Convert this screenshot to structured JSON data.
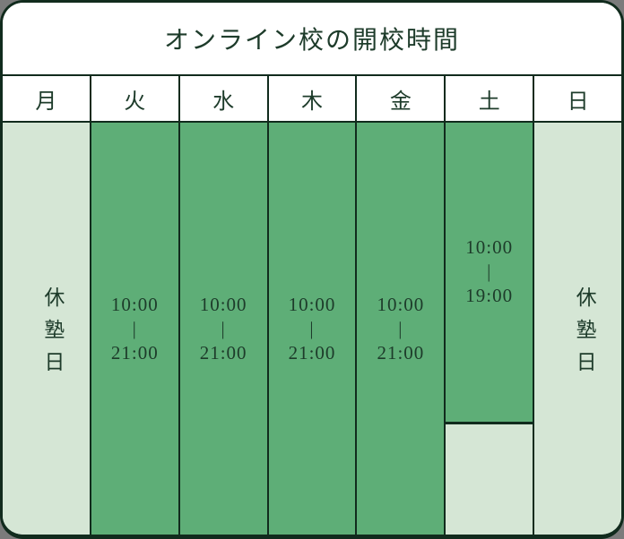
{
  "chart_data": {
    "type": "table",
    "title": "オンライン校の開校時間",
    "categories": [
      "月",
      "火",
      "水",
      "木",
      "金",
      "土",
      "日"
    ],
    "values": [
      "休塾日",
      "10:00–21:00",
      "10:00–21:00",
      "10:00–21:00",
      "10:00–21:00",
      "10:00–19:00",
      "休塾日"
    ],
    "legend_position": "none",
    "grid": true
  },
  "closed_label": "休塾日",
  "time_separator": "|",
  "days": [
    {
      "label": "月",
      "status": "closed"
    },
    {
      "label": "火",
      "status": "open",
      "start": "10:00",
      "end": "21:00"
    },
    {
      "label": "水",
      "status": "open",
      "start": "10:00",
      "end": "21:00"
    },
    {
      "label": "木",
      "status": "open",
      "start": "10:00",
      "end": "21:00"
    },
    {
      "label": "金",
      "status": "open",
      "start": "10:00",
      "end": "21:00"
    },
    {
      "label": "土",
      "status": "open_partial",
      "start": "10:00",
      "end": "19:00"
    },
    {
      "label": "日",
      "status": "closed"
    }
  ],
  "colors": {
    "open_fill": "#5eae77",
    "closed_fill": "#d5e6d5",
    "border": "#112b1d",
    "text": "#1d3b2a",
    "card_background": "#ffffff",
    "page_background": "#7b7b7b"
  }
}
